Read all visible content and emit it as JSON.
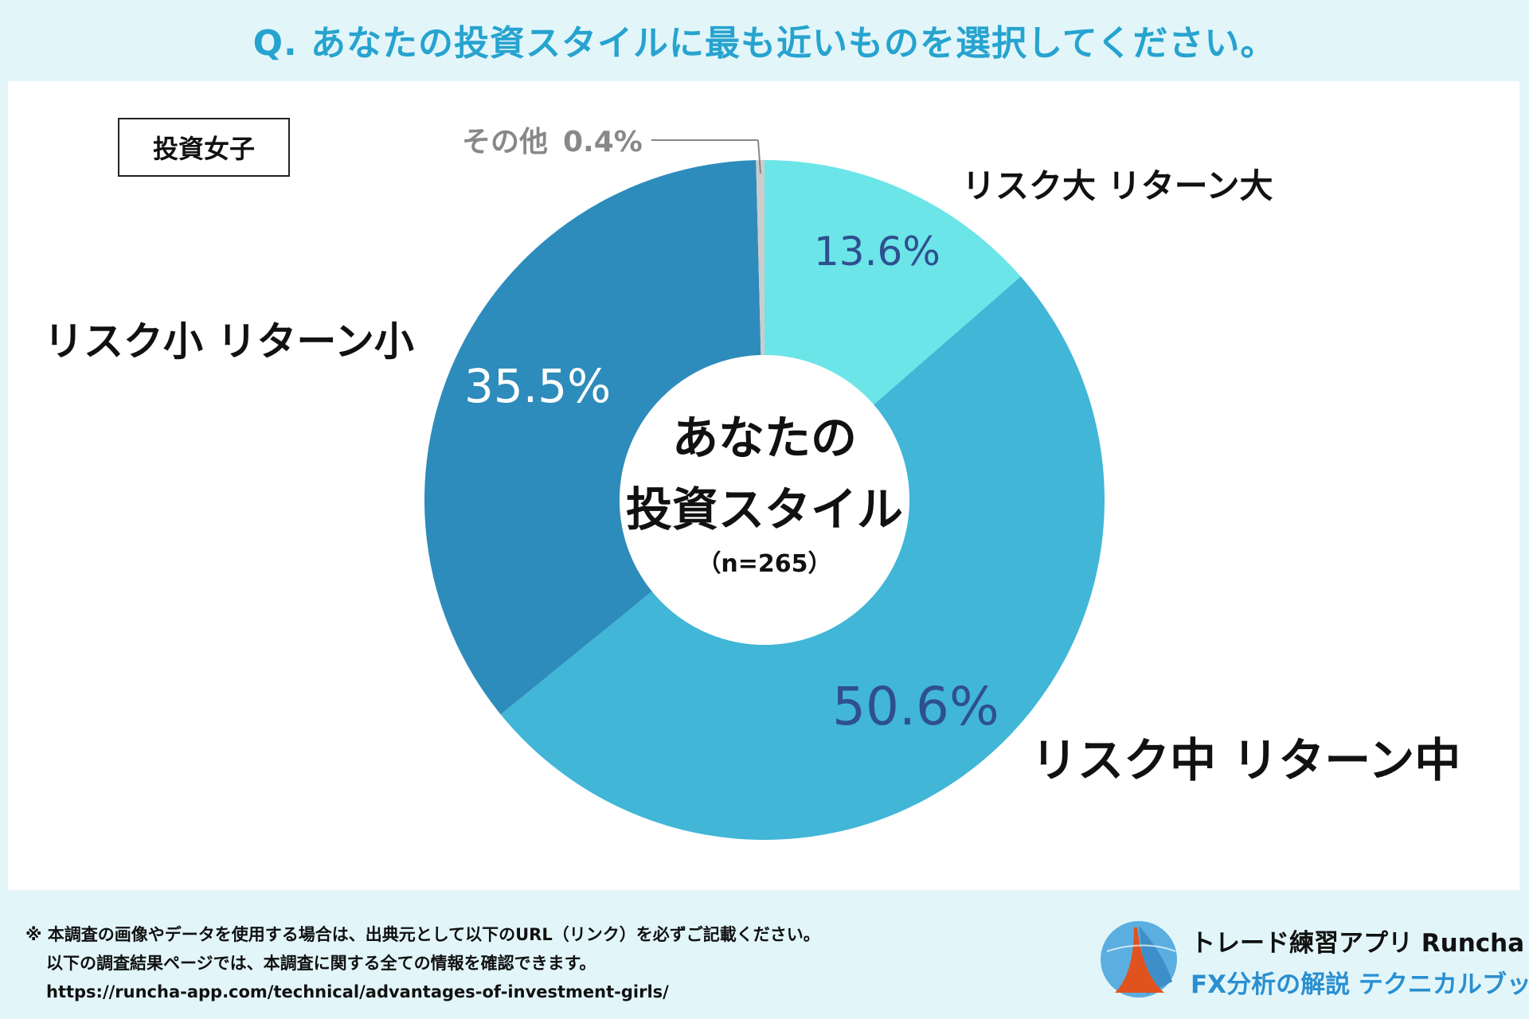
{
  "title": "Q. あなたの投資スタイルに最も近いものを選択してください。",
  "tag": "投資女子",
  "chart_data": {
    "type": "pie",
    "variant": "donut",
    "center_title_line1": "あなたの",
    "center_title_line2": "投資スタイル",
    "center_subtitle": "（n=265）",
    "slices": [
      {
        "label": "リスク大 リターン大",
        "value": 13.6,
        "value_label": "13.6%",
        "color": "#6be5e8",
        "value_color": "#2f4f8f"
      },
      {
        "label": "リスク中 リターン中",
        "value": 50.6,
        "value_label": "50.6%",
        "color": "#41b6d7",
        "value_color": "#2f4f8f"
      },
      {
        "label": "リスク小 リターン小",
        "value": 35.5,
        "value_label": "35.5%",
        "color": "#2d8cbb",
        "value_color": "#ffffff"
      },
      {
        "label": "その他",
        "value": 0.4,
        "value_label": "0.4%",
        "color": "#cccccc",
        "value_color": "#888888"
      }
    ]
  },
  "footer": {
    "line1": "※ 本調査の画像やデータを使用する場合は、出典元として以下のURL（リンク）を必ずご記載ください。",
    "line2": "以下の調査結果ページでは、本調査に関する全ての情報を確認できます。",
    "line3": "https://runcha-app.com/technical/advantages-of-investment-girls/"
  },
  "brand": {
    "name": "トレード練習アプリ  Runcha",
    "sub": "FX分析の解説  テクニカルブック"
  }
}
